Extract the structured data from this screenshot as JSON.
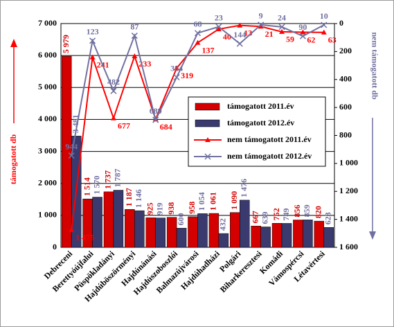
{
  "chart_data": {
    "type": "combo",
    "categories": [
      "Debreceni",
      "Berettyóújfalui",
      "Püspökladányi",
      "Hajdúböszörményi",
      "Hajdúnánási",
      "Hajdúszoboszlói",
      "Balmazújvárosi",
      "Hajdúhadházi",
      "Polgári",
      "Biharkeresztesi",
      "Komádi",
      "Vámospércsi",
      "Létavértesi"
    ],
    "ylabel": "támogatott db",
    "y2label": "nem támogatott db",
    "ylim": [
      0,
      7000
    ],
    "yticks": [
      0,
      {
        "value": 1000,
        "label": "1 000"
      },
      {
        "value": 2000,
        "label": "2 000"
      },
      {
        "value": 3000,
        "label": "3 000"
      },
      {
        "value": 4000,
        "label": "4 000"
      },
      {
        "value": 5000,
        "label": "5 000"
      },
      {
        "value": 6000,
        "label": "6 000"
      },
      {
        "value": 7000,
        "label": "7 000"
      }
    ],
    "y2lim": [
      1600,
      0
    ],
    "y2ticks": [
      0,
      200,
      400,
      600,
      800,
      {
        "value": 1000,
        "label": "1 000"
      },
      {
        "value": 1200,
        "label": "1 200"
      },
      {
        "value": 1400,
        "label": "1 400"
      },
      {
        "value": 1600,
        "label": "1 600"
      }
    ],
    "grid": true,
    "series": [
      {
        "name": "támogatott 2011.év",
        "type": "bar",
        "color": "#d40000",
        "values": [
          5979,
          1514,
          1737,
          1187,
          925,
          938,
          958,
          1061,
          1090,
          667,
          752,
          856,
          820
        ],
        "value_labels": [
          "5 979",
          "1 514",
          "1 737",
          "1 187",
          "925",
          "938",
          "958",
          "1 061",
          "1 090",
          "667",
          "752",
          "856",
          "820"
        ]
      },
      {
        "name": "támogatott 2012.év",
        "type": "bar",
        "color": "#3a3a6e",
        "values": [
          3481,
          1570,
          1787,
          1146,
          919,
          600,
          1054,
          432,
          1476,
          639,
          749,
          859,
          623
        ],
        "value_labels": [
          "3 481",
          "1 570",
          "1 787",
          "1 146",
          "919",
          "600",
          "1 054",
          "432",
          "1 476",
          "639",
          "749",
          "859",
          "623"
        ]
      },
      {
        "name": "nem támogatott 2011.év",
        "type": "line",
        "axis": "y2",
        "color": "#ff0000",
        "values": [
          1475,
          241,
          677,
          233,
          684,
          319,
          137,
          40,
          13,
          21,
          59,
          62,
          63
        ],
        "value_labels": [
          "1 475",
          "241",
          "677",
          "233",
          "684",
          "319",
          "137",
          "40",
          "13",
          "21",
          "59",
          "62",
          "63"
        ]
      },
      {
        "name": "nem támogatott 2012.év",
        "type": "line",
        "axis": "y2",
        "color": "#7070a0",
        "values": [
          944,
          123,
          482,
          87,
          689,
          384,
          68,
          23,
          144,
          9,
          24,
          90,
          10
        ],
        "value_labels": [
          "944",
          "123",
          "482",
          "87",
          "689",
          "384",
          "68",
          "23",
          "144",
          "9",
          "24",
          "90",
          "10"
        ]
      }
    ]
  }
}
